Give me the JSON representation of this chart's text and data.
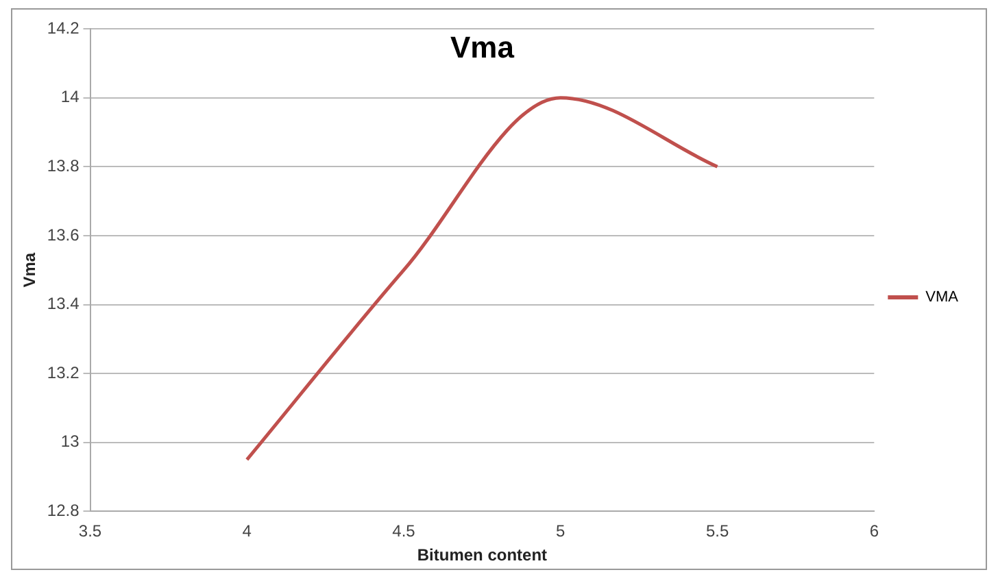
{
  "chart_data": {
    "type": "line",
    "title": "Vma",
    "xlabel": "Bitumen content",
    "ylabel": "Vma",
    "x": [
      4,
      4.5,
      5,
      5.5
    ],
    "series": [
      {
        "name": "VMA",
        "color": "#c0504d",
        "values": [
          12.95,
          13.5,
          14.0,
          13.8
        ]
      }
    ],
    "xlim": [
      3.5,
      6
    ],
    "xticks": [
      3.5,
      4,
      4.5,
      5,
      5.5,
      6
    ],
    "ylim": [
      12.8,
      14.2
    ],
    "yticks": [
      12.8,
      13,
      13.2,
      13.4,
      13.6,
      13.8,
      14,
      14.2
    ],
    "grid": "y",
    "legend": "right",
    "marker": "none",
    "line_style": "solid"
  }
}
